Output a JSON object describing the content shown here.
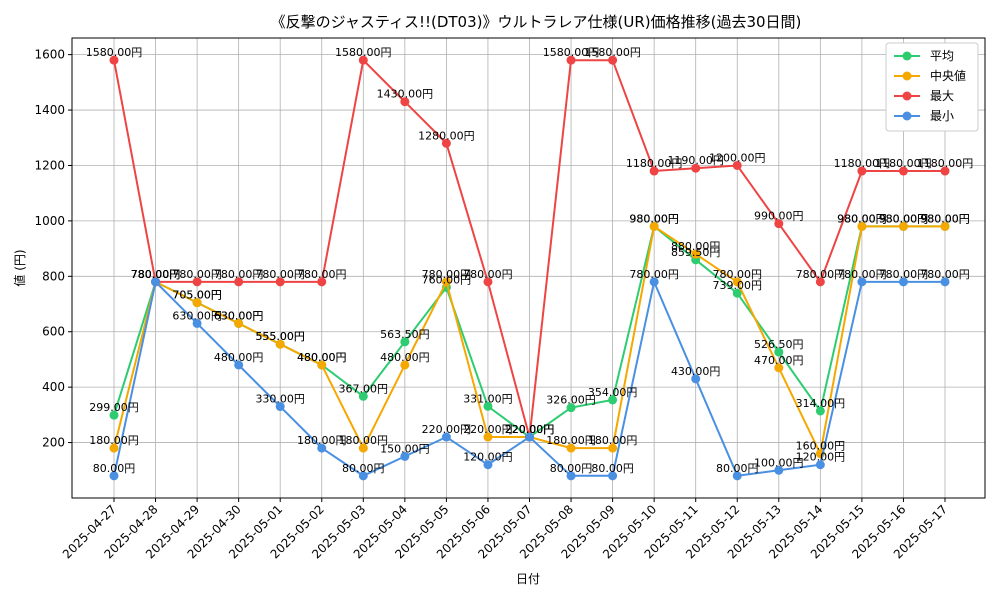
{
  "chart_data": {
    "type": "line",
    "title": "《反撃のジャスティス!!(DT03)》ウルトラレア仕様(UR)価格推移(過去30日間)",
    "xlabel": "日付",
    "ylabel": "値 (円)",
    "ylim": [
      0,
      1660
    ],
    "yticks": [
      200,
      400,
      600,
      800,
      1000,
      1200,
      1400,
      1600
    ],
    "grid": true,
    "legend_position": "top-right",
    "label_suffix": "円",
    "x": [
      "2025-04-27",
      "2025-04-28",
      "2025-04-29",
      "2025-04-30",
      "2025-05-01",
      "2025-05-02",
      "2025-05-03",
      "2025-05-04",
      "2025-05-05",
      "2025-05-06",
      "2025-05-07",
      "2025-05-08",
      "2025-05-09",
      "2025-05-10",
      "2025-05-11",
      "2025-05-12",
      "2025-05-13",
      "2025-05-14",
      "2025-05-15",
      "2025-05-16",
      "2025-05-17"
    ],
    "series": [
      {
        "name": "平均",
        "color": "#2ecc71",
        "values": [
          299,
          780,
          705,
          630,
          555,
          480,
          367,
          563.5,
          760,
          331,
          220,
          326,
          354,
          980,
          859.5,
          739,
          526.5,
          314,
          980,
          980,
          980
        ]
      },
      {
        "name": "中央値",
        "color": "#f5a800",
        "values": [
          180,
          780,
          705,
          630,
          555,
          480,
          180,
          480,
          780,
          220,
          220,
          180,
          180,
          980,
          880,
          780,
          470,
          160,
          980,
          980,
          980
        ]
      },
      {
        "name": "最大",
        "color": "#ef4444",
        "values": [
          1580,
          780,
          780,
          780,
          780,
          780,
          1580,
          1430,
          1280,
          780,
          220,
          1580,
          1580,
          1180,
          1190,
          1200,
          990,
          780,
          1180,
          1180,
          1180
        ]
      },
      {
        "name": "最小",
        "color": "#4a90e2",
        "values": [
          80,
          780,
          630,
          480,
          330,
          180,
          80,
          150,
          220,
          120,
          220,
          80,
          80,
          780,
          430,
          80,
          100,
          120,
          780,
          780,
          780
        ]
      }
    ]
  }
}
